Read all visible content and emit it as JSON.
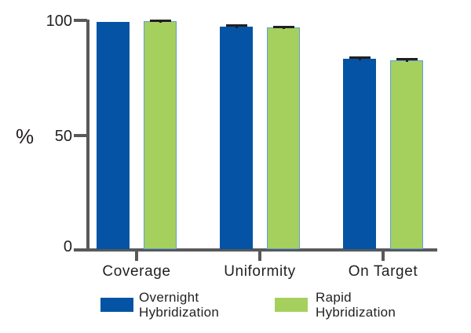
{
  "chart_data": {
    "type": "bar",
    "title": "",
    "ylabel": "%",
    "ylim": [
      0,
      100
    ],
    "yticks": [
      0,
      50,
      100
    ],
    "grid": false,
    "legend_position": "bottom",
    "categories": [
      "Coverage",
      "Uniformity",
      "On Target"
    ],
    "series": [
      {
        "name": "Overnight Hybridization",
        "color": "#0553a4",
        "values": [
          99.7,
          97.7,
          83.4
        ],
        "errors": [
          0,
          0.9,
          1.0
        ]
      },
      {
        "name": "Rapid Hybridization",
        "color": "#a5d05e",
        "border_color": "#5e9fd4",
        "values": [
          100.0,
          97.2,
          82.8
        ],
        "errors": [
          0.8,
          0.9,
          0.9
        ]
      }
    ]
  },
  "axis": {
    "ytick_labels": [
      "100",
      "50",
      "0"
    ]
  },
  "legend": {
    "items": [
      {
        "line1": "Overnight",
        "line2": "Hybridization"
      },
      {
        "line1": "Rapid",
        "line2": "Hybridization"
      }
    ]
  },
  "colors": {
    "axis": "#58595b",
    "text": "#231f20",
    "error_bar": "#231f20",
    "background": "#ffffff"
  }
}
